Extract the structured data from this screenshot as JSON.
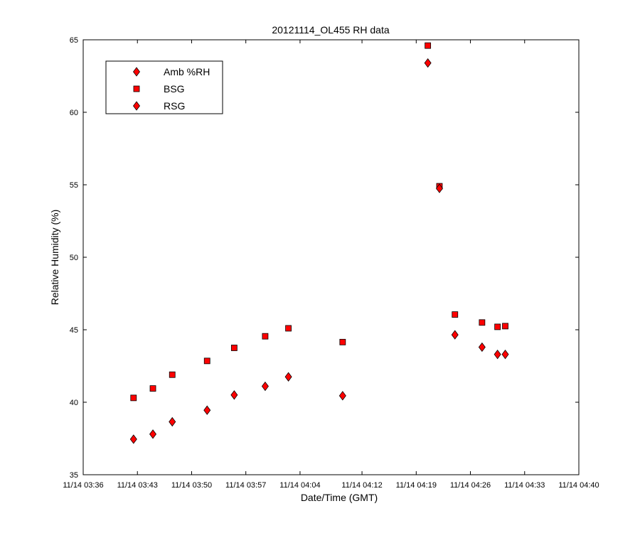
{
  "chart_data": {
    "type": "scatter",
    "title": "20121114_OL455 RH data",
    "xlabel": "Date/Time (GMT)",
    "ylabel": "Relative Humidity (%)",
    "ylim": [
      35,
      65
    ],
    "yticks": [
      35,
      40,
      45,
      50,
      55,
      60,
      65
    ],
    "xlim": [
      "11/14 03:36",
      "11/14 04:40"
    ],
    "xticks": [
      "11/14 03:36",
      "11/14 03:43",
      "11/14 03:50",
      "11/14 03:57",
      "11/14 04:04",
      "11/14 04:12",
      "11/14 04:19",
      "11/14 04:26",
      "11/14 04:33",
      "11/14 04:40"
    ],
    "grid": false,
    "legend_position": "top-left",
    "marker_color": "#ff0000",
    "series": [
      {
        "name": "Amb %RH",
        "marker": "diamond",
        "x": [],
        "y": []
      },
      {
        "name": "BSG",
        "marker": "square",
        "x": [
          "11/14 03:42:30",
          "11/14 03:45:00",
          "11/14 03:47:30",
          "11/14 03:52:00",
          "11/14 03:55:30",
          "11/14 03:59:30",
          "11/14 04:02:30",
          "11/14 04:09:30",
          "11/14 04:20:30",
          "11/14 04:22:00",
          "11/14 04:24:00",
          "11/14 04:27:30",
          "11/14 04:29:30",
          "11/14 04:30:30"
        ],
        "y": [
          40.3,
          40.95,
          41.9,
          42.85,
          43.75,
          44.55,
          45.1,
          44.15,
          64.6,
          54.9,
          46.05,
          45.5,
          45.2,
          45.25
        ]
      },
      {
        "name": "RSG",
        "marker": "diamond",
        "x": [
          "11/14 03:42:30",
          "11/14 03:45:00",
          "11/14 03:47:30",
          "11/14 03:52:00",
          "11/14 03:55:30",
          "11/14 03:59:30",
          "11/14 04:02:30",
          "11/14 04:09:30",
          "11/14 04:20:30",
          "11/14 04:22:00",
          "11/14 04:24:00",
          "11/14 04:27:30",
          "11/14 04:29:30",
          "11/14 04:30:30"
        ],
        "y": [
          37.45,
          37.8,
          38.65,
          39.45,
          40.5,
          41.1,
          41.75,
          40.45,
          63.4,
          54.75,
          44.65,
          43.8,
          43.3,
          43.3
        ]
      }
    ]
  }
}
